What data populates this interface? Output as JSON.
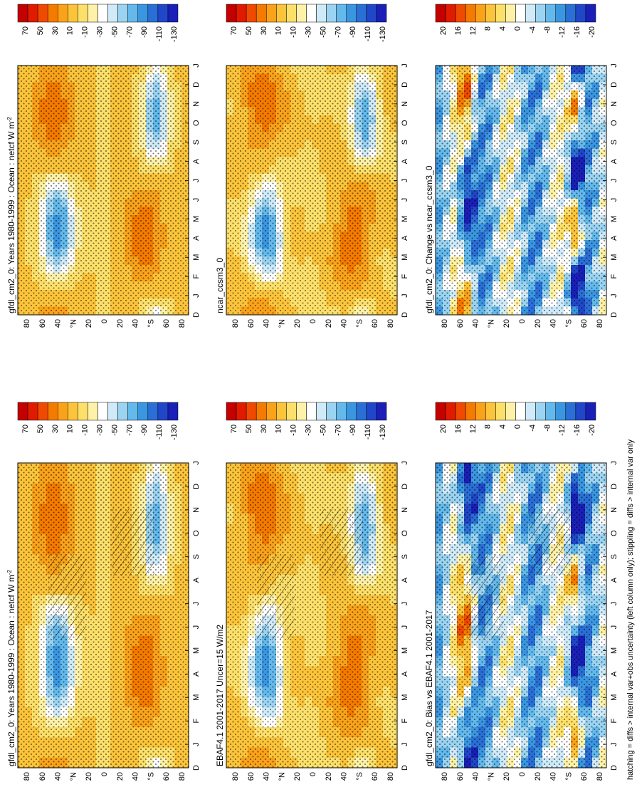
{
  "figure": {
    "footnote": "hatching = diffs > internal var+obs uncertainty (left column only); stippling = diffs > internal var only"
  },
  "palettes": {
    "abs": [
      "#c40000",
      "#e01b00",
      "#ef4a00",
      "#f57a00",
      "#f9a21a",
      "#fbc43a",
      "#fde06a",
      "#fff2a8",
      "#ffffff",
      "#cfeaf8",
      "#9ad4f2",
      "#63b9ec",
      "#3b96e1",
      "#2a6fd6",
      "#2047c9",
      "#1a1fb8"
    ],
    "diff": [
      "#c40000",
      "#e01b00",
      "#ef4a00",
      "#f57a00",
      "#f9a21a",
      "#fbc43a",
      "#fde06a",
      "#fff2a8",
      "#ffffff",
      "#cfeaf8",
      "#9ad4f2",
      "#63b9ec",
      "#3b96e1",
      "#2a6fd6",
      "#2047c9",
      "#1a1fb8"
    ]
  },
  "chart_data": [
    {
      "type": "heatmap",
      "id": "model-abs",
      "title": "gfdl_cm2_0: Years 1980-1999 : Ocean : netcf W m",
      "title_sup": "-2",
      "x_labels": [
        "D",
        "J",
        "F",
        "M",
        "A",
        "M",
        "J",
        "J",
        "A",
        "S",
        "O",
        "N",
        "D",
        "J"
      ],
      "y_labels": [
        "80",
        "60",
        "40",
        "°N",
        "20",
        "0",
        "20",
        "40",
        "°S",
        "60",
        "80"
      ],
      "colorbar_labels": [
        "70",
        "50",
        "30",
        "10",
        "-10",
        "-30",
        "-50",
        "-70",
        "-90",
        "-110",
        "-130"
      ],
      "palette": "abs",
      "hatching": false,
      "stippling": true,
      "ylim": [
        -90,
        90
      ],
      "approx_values_by_latitude": {
        "80N": 20,
        "55N": -100,
        "0": -10,
        "40S": 30,
        "60S": -70
      }
    },
    {
      "type": "heatmap",
      "id": "obs-abs",
      "title": "ncar_ccsm3_0",
      "title_sup": "",
      "x_labels": [
        "D",
        "J",
        "F",
        "M",
        "A",
        "M",
        "J",
        "J",
        "A",
        "S",
        "O",
        "N",
        "D",
        "J"
      ],
      "y_labels": [
        "80",
        "60",
        "40",
        "°N",
        "20",
        "0",
        "20",
        "40",
        "°S",
        "60",
        "80"
      ],
      "colorbar_labels": [
        "70",
        "50",
        "30",
        "10",
        "-10",
        "-30",
        "-50",
        "-70",
        "-90",
        "-110",
        "-130"
      ],
      "palette": "abs",
      "hatching": false,
      "stippling": true,
      "ylim": [
        -90,
        90
      ]
    },
    {
      "type": "heatmap",
      "id": "model-change",
      "title": "gfdl_cm2_0: Change vs ncar_ccsm3_0",
      "title_sup": "",
      "x_labels": [
        "D",
        "J",
        "F",
        "M",
        "A",
        "M",
        "J",
        "J",
        "A",
        "S",
        "O",
        "N",
        "D",
        "J"
      ],
      "y_labels": [
        "80",
        "60",
        "40",
        "°N",
        "20",
        "0",
        "20",
        "40",
        "°S",
        "60",
        "80"
      ],
      "colorbar_labels": [
        "20",
        "16",
        "12",
        "8",
        "4",
        "0",
        "-4",
        "-8",
        "-12",
        "-16",
        "-20"
      ],
      "palette": "diff",
      "hatching": false,
      "stippling": true,
      "ylim": [
        -90,
        90
      ]
    },
    {
      "type": "heatmap",
      "id": "model-abs-left",
      "title": "gfdl_cm2_0: Years 1980-1999 : Ocean : netcf W m",
      "title_sup": "-2",
      "x_labels": [
        "D",
        "J",
        "F",
        "M",
        "A",
        "M",
        "J",
        "J",
        "A",
        "S",
        "O",
        "N",
        "D",
        "J"
      ],
      "y_labels": [
        "80",
        "60",
        "40",
        "°N",
        "20",
        "0",
        "20",
        "40",
        "°S",
        "60",
        "80"
      ],
      "colorbar_labels": [
        "70",
        "50",
        "30",
        "10",
        "-10",
        "-30",
        "-50",
        "-70",
        "-90",
        "-110",
        "-130"
      ],
      "palette": "abs",
      "hatching": true,
      "stippling": true,
      "ylim": [
        -90,
        90
      ]
    },
    {
      "type": "heatmap",
      "id": "obs-ebaf",
      "title": "EBAF4.1 2001-2017 Uncer=15 W/m2",
      "title_sup": "",
      "x_labels": [
        "D",
        "J",
        "F",
        "M",
        "A",
        "M",
        "J",
        "J",
        "A",
        "S",
        "O",
        "N",
        "D",
        "J"
      ],
      "y_labels": [
        "80",
        "60",
        "40",
        "°N",
        "20",
        "0",
        "20",
        "40",
        "°S",
        "60",
        "80"
      ],
      "colorbar_labels": [
        "70",
        "50",
        "30",
        "10",
        "-10",
        "-30",
        "-50",
        "-70",
        "-90",
        "-110",
        "-130"
      ],
      "palette": "abs",
      "hatching": true,
      "stippling": true,
      "ylim": [
        -90,
        90
      ]
    },
    {
      "type": "heatmap",
      "id": "model-bias",
      "title": "gfdl_cm2_0: Bias vs EBAF4.1 2001-2017",
      "title_sup": "",
      "x_labels": [
        "D",
        "J",
        "F",
        "M",
        "A",
        "M",
        "J",
        "J",
        "A",
        "S",
        "O",
        "N",
        "D",
        "J"
      ],
      "y_labels": [
        "80",
        "60",
        "40",
        "°N",
        "20",
        "0",
        "20",
        "40",
        "°S",
        "60",
        "80"
      ],
      "colorbar_labels": [
        "20",
        "16",
        "12",
        "8",
        "4",
        "0",
        "-4",
        "-8",
        "-12",
        "-16",
        "-20"
      ],
      "palette": "diff",
      "hatching": true,
      "stippling": true,
      "ylim": [
        -90,
        90
      ]
    }
  ]
}
